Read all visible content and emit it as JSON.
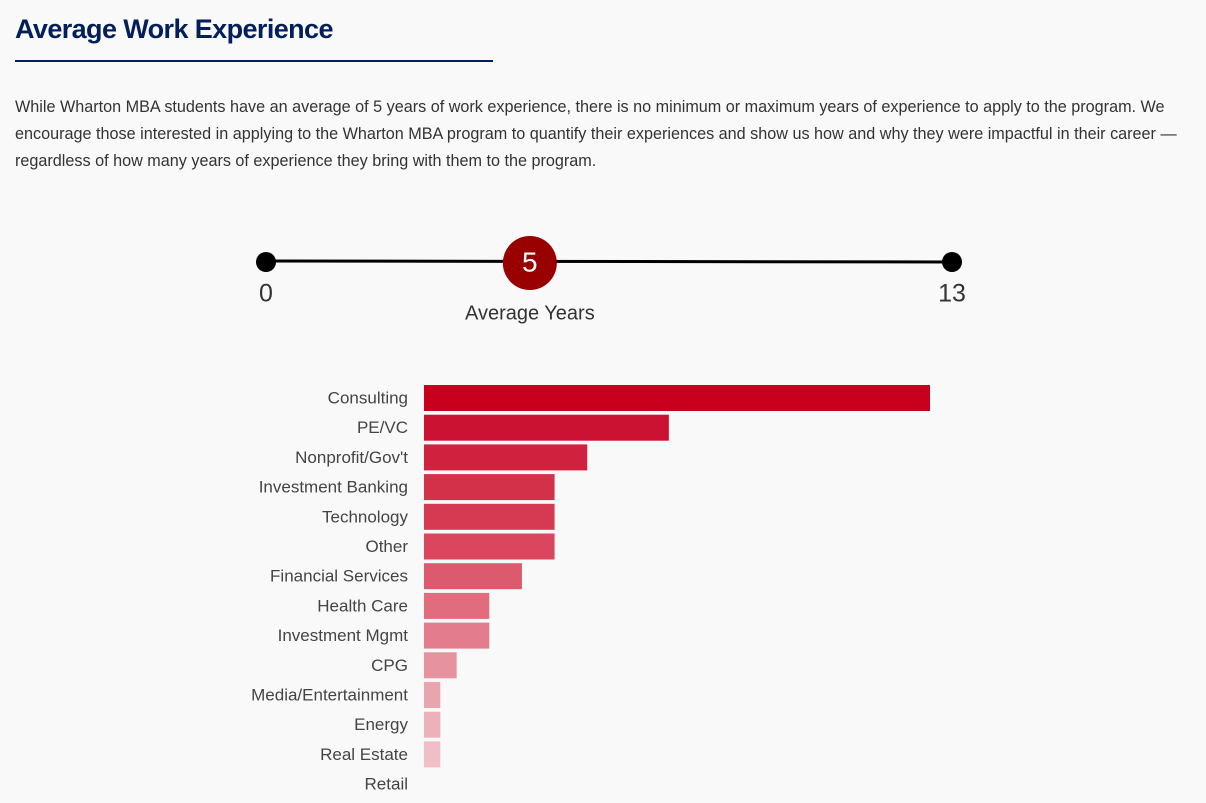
{
  "header": {
    "title": "Average Work Experience"
  },
  "intro": "While Wharton MBA students have an average of 5 years of work experience, there is no minimum or maximum years of experience to apply to the program. We encourage those interested in applying to the Wharton MBA program to quantify their experiences and show us how and why they were impactful in their career — regardless of how many years of experience they bring with them to the program.",
  "slider": {
    "min": 0,
    "max": 13,
    "value": 5,
    "label": "Average Years"
  },
  "chart_data": {
    "type": "bar",
    "orientation": "horizontal",
    "categories": [
      "Consulting",
      "PE/VC",
      "Nonprofit/Gov't",
      "Investment Banking",
      "Technology",
      "Other",
      "Financial Services",
      "Health Care",
      "Investment Mgmt",
      "CPG",
      "Media/Entertainment",
      "Energy",
      "Real Estate",
      "Retail"
    ],
    "values": [
      31,
      15,
      10,
      8,
      8,
      8,
      6,
      4,
      4,
      2,
      1,
      1,
      1,
      0
    ],
    "colors": [
      "#c8001e",
      "#cc1232",
      "#d0213e",
      "#d3304a",
      "#d63a53",
      "#d9465e",
      "#dc5a6e",
      "#e06c7e",
      "#e37c8c",
      "#e6929f",
      "#e9a4af",
      "#ecb2bc",
      "#efbec7",
      "#f2cad1"
    ]
  }
}
